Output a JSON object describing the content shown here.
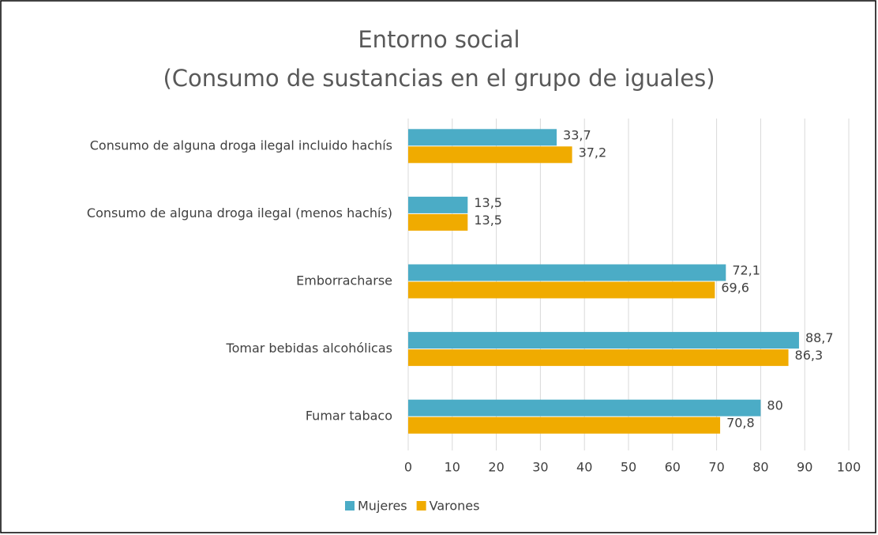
{
  "chart_data": {
    "type": "barh",
    "title": "Entorno social",
    "subtitle": "(Consumo de sustancias en el grupo de iguales)",
    "categories": [
      "Consumo de alguna droga ilegal incluido hachís",
      "Consumo de alguna droga ilegal (menos hachís)",
      "Emborracharse",
      "Tomar bebidas alcohólicas",
      "Fumar tabaco"
    ],
    "series": [
      {
        "name": "Mujeres",
        "color": "#4bacc6",
        "values": [
          33.7,
          13.5,
          72.1,
          88.7,
          80
        ],
        "value_labels": [
          "33,7",
          "13,5",
          "72,1",
          "88,7",
          "80"
        ]
      },
      {
        "name": "Varones",
        "color": "#f0ab00",
        "values": [
          37.2,
          13.5,
          69.6,
          86.3,
          70.8
        ],
        "value_labels": [
          "37,2",
          "13,5",
          "69,6",
          "86,3",
          "70,8"
        ]
      }
    ],
    "xlim": [
      0,
      100
    ],
    "xticks": [
      0,
      10,
      20,
      30,
      40,
      50,
      60,
      70,
      80,
      90,
      100
    ],
    "grid": true,
    "legend": "bottom"
  }
}
